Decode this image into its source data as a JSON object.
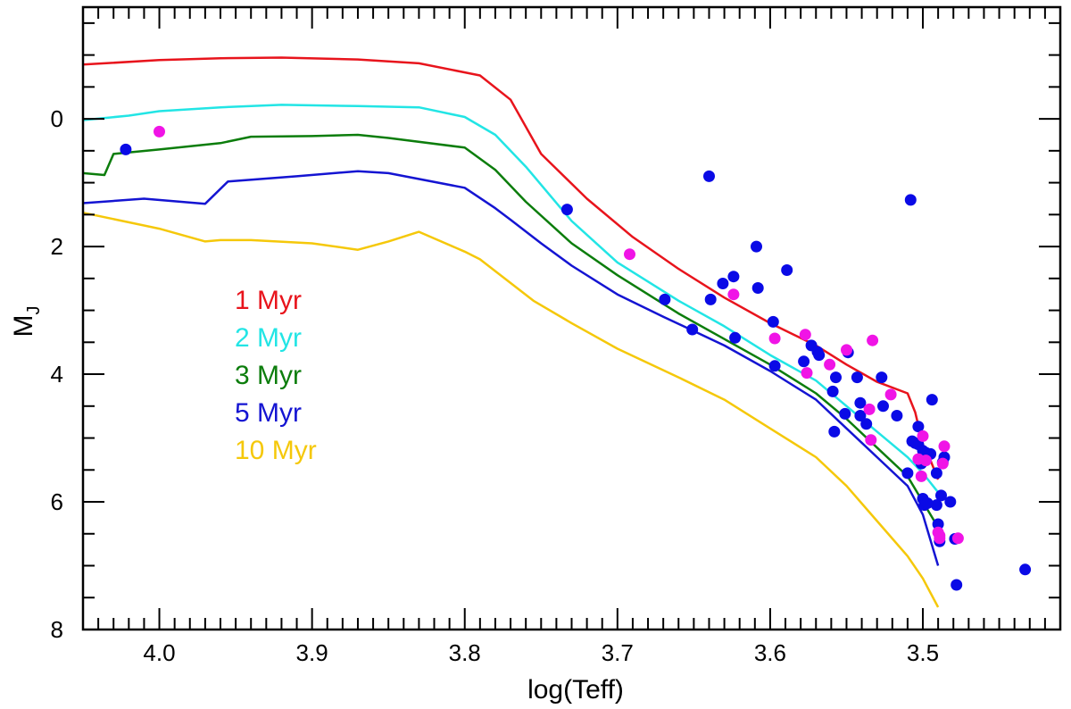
{
  "chart_data": {
    "type": "scatter",
    "xlabel": "log(Teff)",
    "ylabel": "M",
    "ylabel_subscript": "J",
    "xlim": [
      4.05,
      3.41
    ],
    "ylim": [
      -1.75,
      8.0
    ],
    "x_ticks": [
      4.0,
      3.9,
      3.8,
      3.7,
      3.6,
      3.5
    ],
    "x_tick_labels": [
      "4.0",
      "3.9",
      "3.8",
      "3.7",
      "3.6",
      "3.5"
    ],
    "y_ticks": [
      0,
      2,
      4,
      6,
      8
    ],
    "y_tick_labels": [
      "0",
      "2",
      "4",
      "6",
      "8"
    ],
    "grid": false,
    "legend_position": "left",
    "isochrones": [
      {
        "name": "1 Myr",
        "color": "#e8141c",
        "x": [
          4.05,
          4.0,
          3.96,
          3.92,
          3.87,
          3.83,
          3.79,
          3.77,
          3.75,
          3.72,
          3.69,
          3.66,
          3.63,
          3.6,
          3.57,
          3.55,
          3.53,
          3.51,
          3.505,
          3.5,
          3.495,
          3.49
        ],
        "y": [
          -0.85,
          -0.92,
          -0.95,
          -0.96,
          -0.93,
          -0.87,
          -0.68,
          -0.3,
          0.55,
          1.25,
          1.85,
          2.35,
          2.8,
          3.2,
          3.55,
          3.85,
          4.12,
          4.3,
          4.6,
          5.1,
          5.35,
          5.65
        ]
      },
      {
        "name": "2 Myr",
        "color": "#22e5e5",
        "x": [
          4.05,
          4.02,
          4.0,
          3.96,
          3.92,
          3.87,
          3.83,
          3.8,
          3.78,
          3.76,
          3.73,
          3.7,
          3.66,
          3.63,
          3.6,
          3.57,
          3.55,
          3.53,
          3.51,
          3.5,
          3.49
        ],
        "y": [
          0.02,
          -0.05,
          -0.12,
          -0.18,
          -0.22,
          -0.2,
          -0.18,
          -0.03,
          0.25,
          0.75,
          1.6,
          2.25,
          2.85,
          3.25,
          3.7,
          4.1,
          4.5,
          4.9,
          5.3,
          5.55,
          5.85
        ]
      },
      {
        "name": "3 Myr",
        "color": "#0c7d0c",
        "x": [
          4.05,
          4.036,
          4.03,
          4.0,
          3.96,
          3.94,
          3.9,
          3.87,
          3.85,
          3.8,
          3.78,
          3.76,
          3.73,
          3.7,
          3.66,
          3.63,
          3.6,
          3.57,
          3.55,
          3.53,
          3.51,
          3.5,
          3.49
        ],
        "y": [
          0.85,
          0.88,
          0.55,
          0.48,
          0.38,
          0.28,
          0.27,
          0.25,
          0.3,
          0.45,
          0.8,
          1.3,
          1.95,
          2.45,
          3.05,
          3.45,
          3.85,
          4.3,
          4.7,
          5.15,
          5.6,
          6.0,
          6.4
        ]
      },
      {
        "name": "5 Myr",
        "color": "#1414d2",
        "x": [
          4.05,
          4.01,
          3.97,
          3.955,
          3.91,
          3.87,
          3.85,
          3.8,
          3.78,
          3.77,
          3.75,
          3.73,
          3.7,
          3.67,
          3.63,
          3.6,
          3.57,
          3.55,
          3.53,
          3.51,
          3.5,
          3.49
        ],
        "y": [
          1.32,
          1.25,
          1.33,
          0.98,
          0.9,
          0.82,
          0.85,
          1.08,
          1.4,
          1.58,
          1.95,
          2.3,
          2.75,
          3.1,
          3.55,
          3.95,
          4.4,
          4.85,
          5.3,
          5.75,
          6.2,
          7.0
        ]
      },
      {
        "name": "10 Myr",
        "color": "#f5c80a",
        "x": [
          4.05,
          4.0,
          3.97,
          3.96,
          3.94,
          3.9,
          3.87,
          3.85,
          3.83,
          3.8,
          3.79,
          3.755,
          3.73,
          3.7,
          3.66,
          3.63,
          3.6,
          3.57,
          3.55,
          3.53,
          3.51,
          3.5,
          3.49
        ],
        "y": [
          1.47,
          1.72,
          1.92,
          1.9,
          1.9,
          1.95,
          2.05,
          1.92,
          1.77,
          2.08,
          2.2,
          2.85,
          3.2,
          3.6,
          4.05,
          4.4,
          4.85,
          5.3,
          5.75,
          6.3,
          6.85,
          7.2,
          7.65
        ]
      }
    ],
    "series": [
      {
        "name": "blue members",
        "color": "#0a0ae6",
        "x": [
          4.022,
          3.733,
          3.669,
          3.651,
          3.64,
          3.639,
          3.631,
          3.624,
          3.623,
          3.609,
          3.608,
          3.598,
          3.597,
          3.589,
          3.578,
          3.573,
          3.569,
          3.568,
          3.559,
          3.558,
          3.557,
          3.551,
          3.549,
          3.543,
          3.541,
          3.541,
          3.537,
          3.527,
          3.526,
          3.517,
          3.51,
          3.508,
          3.507,
          3.505,
          3.503,
          3.503,
          3.501,
          3.5,
          3.498,
          3.5,
          3.499,
          3.497,
          3.495,
          3.494,
          3.491,
          3.491,
          3.49,
          3.489,
          3.488,
          3.487,
          3.486,
          3.482,
          3.479,
          3.478,
          3.433
        ],
        "y": [
          0.48,
          1.42,
          2.83,
          3.3,
          0.9,
          2.83,
          2.58,
          2.47,
          3.43,
          2.0,
          2.65,
          3.18,
          3.87,
          2.37,
          3.8,
          3.55,
          3.65,
          3.7,
          4.27,
          4.9,
          4.05,
          4.62,
          3.66,
          4.05,
          4.45,
          4.65,
          4.78,
          4.05,
          4.5,
          4.65,
          5.55,
          1.27,
          5.05,
          5.08,
          5.1,
          4.82,
          5.4,
          5.2,
          5.23,
          5.95,
          6.05,
          6.02,
          5.25,
          4.4,
          6.05,
          5.55,
          6.35,
          6.62,
          5.9,
          5.38,
          5.3,
          6.0,
          6.58,
          7.3,
          7.06
        ]
      },
      {
        "name": "magenta members",
        "color": "#f014e6",
        "x": [
          4.0,
          3.692,
          3.624,
          3.597,
          3.577,
          3.576,
          3.561,
          3.55,
          3.535,
          3.534,
          3.533,
          3.521,
          3.503,
          3.501,
          3.5,
          3.498,
          3.49,
          3.489,
          3.489,
          3.487,
          3.486,
          3.477
        ],
        "y": [
          0.2,
          2.12,
          2.75,
          3.44,
          3.38,
          3.98,
          3.85,
          3.62,
          4.55,
          5.03,
          3.47,
          4.32,
          5.33,
          5.6,
          4.97,
          5.35,
          6.48,
          6.53,
          6.57,
          5.4,
          5.13,
          6.57
        ]
      }
    ],
    "legend": [
      {
        "label": "1 Myr",
        "color": "#e8141c"
      },
      {
        "label": "2 Myr",
        "color": "#22e5e5"
      },
      {
        "label": "3 Myr",
        "color": "#0c7d0c"
      },
      {
        "label": "5 Myr",
        "color": "#1414d2"
      },
      {
        "label": "10 Myr",
        "color": "#f5c80a"
      }
    ]
  }
}
